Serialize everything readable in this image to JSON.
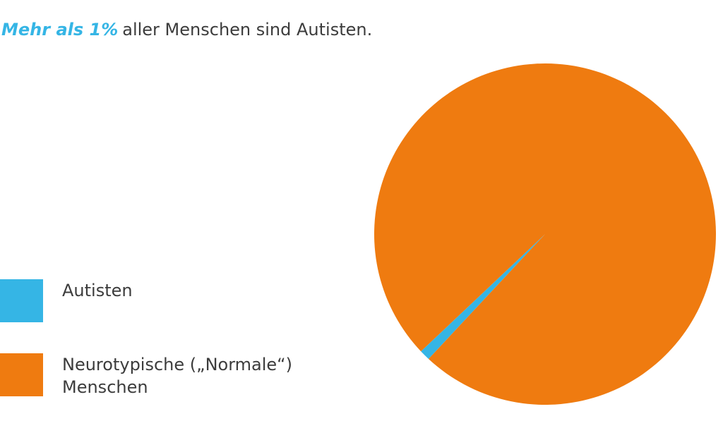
{
  "chart_data": {
    "type": "pie",
    "title_highlight": "Mehr als 1%",
    "title": "aller Menschen sind Autisten.",
    "categories": [
      "Autisten",
      "Neurotypische („Normale“) Menschen"
    ],
    "values": [
      1,
      99
    ],
    "colors": [
      "#35b5e5",
      "#ef7b10"
    ]
  }
}
